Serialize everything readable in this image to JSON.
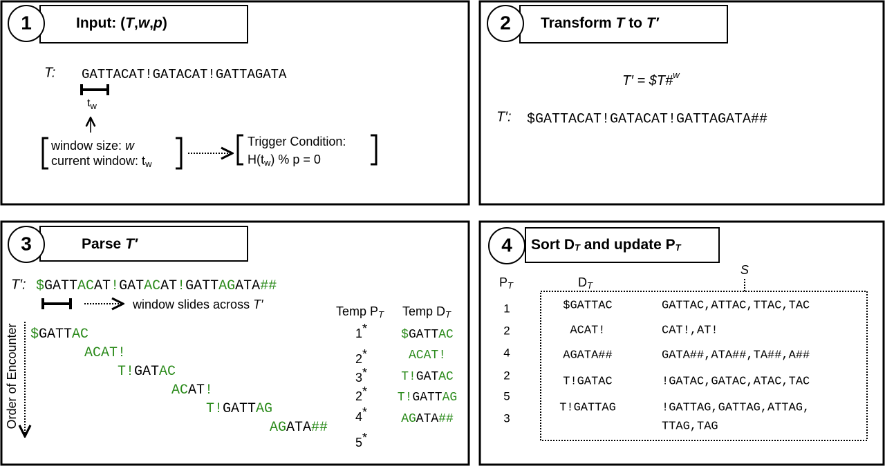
{
  "panel1": {
    "number": "1",
    "title": [
      "Input: (",
      "T",
      ",",
      "w",
      ",",
      "p",
      ")"
    ],
    "t_label": "T:",
    "sequence": "GATTACAT!GATACAT!GATTAGATA",
    "window_label": [
      "t",
      "w"
    ],
    "window_size": [
      "window size: ",
      "w"
    ],
    "current_window": [
      "current window: t",
      "w"
    ],
    "trigger_title": "Trigger Condition:",
    "trigger_condition": [
      "H(t",
      "w",
      ") % p = 0"
    ]
  },
  "panel2": {
    "number": "2",
    "title": [
      "Transform ",
      "T",
      " to ",
      "T′"
    ],
    "formula": [
      "T′ = $T#",
      "w"
    ],
    "t_label": "T′:",
    "sequence": "$GATTACAT!GATACAT!GATTAGATA##"
  },
  "panel3": {
    "number": "3",
    "title": [
      "Parse ",
      "T′"
    ],
    "t_label": "T′:",
    "sequence": [
      {
        "text": "$",
        "color": "#2a8a1a"
      },
      {
        "text": "GATT",
        "color": "#000000"
      },
      {
        "text": "AC",
        "color": "#2a8a1a"
      },
      {
        "text": "AT",
        "color": "#000000"
      },
      {
        "text": "!",
        "color": "#2a8a1a"
      },
      {
        "text": "GAT",
        "color": "#000000"
      },
      {
        "text": "AC",
        "color": "#2a8a1a"
      },
      {
        "text": "AT",
        "color": "#000000"
      },
      {
        "text": "!",
        "color": "#2a8a1a"
      },
      {
        "text": "GATT",
        "color": "#000000"
      },
      {
        "text": "AG",
        "color": "#2a8a1a"
      },
      {
        "text": "ATA",
        "color": "#000000"
      },
      {
        "text": "##",
        "color": "#2a8a1a"
      }
    ],
    "window_text": [
      "window slides across ",
      "T′"
    ],
    "axis_label": "Order of Encounter",
    "phrases": [
      [
        {
          "text": "$",
          "color": "#2a8a1a"
        },
        {
          "text": "GATT",
          "color": "#000000"
        },
        {
          "text": "AC",
          "color": "#2a8a1a"
        }
      ],
      [
        {
          "text": "ACAT!",
          "color": "#2a8a1a"
        }
      ],
      [
        {
          "text": "T!",
          "color": "#2a8a1a"
        },
        {
          "text": "GAT",
          "color": "#000000"
        },
        {
          "text": "AC",
          "color": "#2a8a1a"
        }
      ],
      [
        {
          "text": "AC",
          "color": "#2a8a1a"
        },
        {
          "text": "AT",
          "color": "#000000"
        },
        {
          "text": "!",
          "color": "#2a8a1a"
        }
      ],
      [
        {
          "text": "T!",
          "color": "#2a8a1a"
        },
        {
          "text": "GATT",
          "color": "#000000"
        },
        {
          "text": "AG",
          "color": "#2a8a1a"
        }
      ],
      [
        {
          "text": "AG",
          "color": "#2a8a1a"
        },
        {
          "text": "ATA",
          "color": "#000000"
        },
        {
          "text": "##",
          "color": "#2a8a1a"
        }
      ]
    ],
    "temp_p_header": [
      "Temp P",
      "T"
    ],
    "temp_d_header": [
      "Temp D",
      "T"
    ],
    "temp_p": [
      "1",
      "2",
      "3",
      "2",
      "4",
      "5"
    ],
    "star": "*",
    "temp_d": [
      [
        {
          "text": "$",
          "color": "#2a8a1a"
        },
        {
          "text": "GATT",
          "color": "#000000"
        },
        {
          "text": "AC",
          "color": "#2a8a1a"
        }
      ],
      [
        {
          "text": "ACAT!",
          "color": "#2a8a1a"
        }
      ],
      [
        {
          "text": "T!",
          "color": "#2a8a1a"
        },
        {
          "text": "GAT",
          "color": "#000000"
        },
        {
          "text": "AC",
          "color": "#2a8a1a"
        }
      ],
      [
        {
          "text": "T!",
          "color": "#2a8a1a"
        },
        {
          "text": "GATT",
          "color": "#000000"
        },
        {
          "text": "AG",
          "color": "#2a8a1a"
        }
      ],
      [
        {
          "text": "AG",
          "color": "#2a8a1a"
        },
        {
          "text": "ATA",
          "color": "#000000"
        },
        {
          "text": "##",
          "color": "#2a8a1a"
        }
      ]
    ]
  },
  "panel4": {
    "number": "4",
    "title": [
      "Sort D",
      "T",
      " and update P",
      "T"
    ],
    "p_header": [
      "P",
      "T"
    ],
    "d_header": [
      "D",
      "T"
    ],
    "s_header": "S",
    "p_values": [
      "1",
      "2",
      "4",
      "2",
      "5",
      "3"
    ],
    "rows": [
      {
        "phrase": "$GATTAC",
        "suffixes": [
          "GATTAC,ATTAC,TTAC,TAC"
        ],
        "color": "#e0302a"
      },
      {
        "phrase": "ACAT!",
        "suffixes": [
          "CAT!,AT!"
        ],
        "color": "#1a1acc"
      },
      {
        "phrase": "AGATA##",
        "suffixes": [
          "GATA##,ATA##,TA##,A##"
        ],
        "color": "#f08a30"
      },
      {
        "phrase": "T!GATAC",
        "suffixes": [
          "!GATAC,GATAC,ATAC,TAC"
        ],
        "color": "#1a8a8a"
      },
      {
        "phrase": "T!GATTAG",
        "suffixes": [
          "!GATTAG,GATTAG,ATTAG,",
          "TTAG,TAG"
        ],
        "color": "#d8362e"
      }
    ]
  }
}
